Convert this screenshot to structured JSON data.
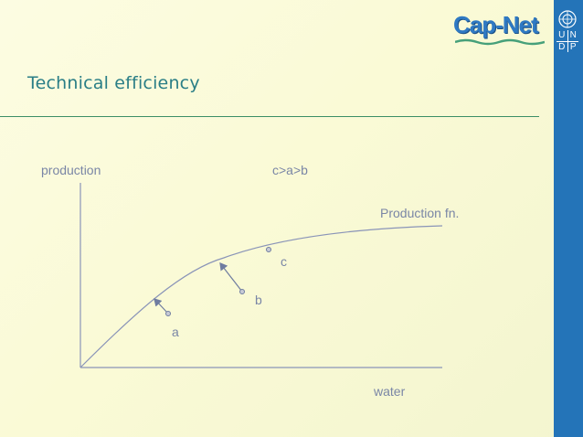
{
  "slide": {
    "title": "Technical efficiency",
    "brand_logo_text": "Cap-Net",
    "undp_letters": [
      "U",
      "N",
      "D",
      "P"
    ],
    "icons": [
      "cap-net-logo",
      "un-emblem-icon",
      "undp-logo"
    ],
    "colors": {
      "side_bar": "#2474b8",
      "title": "#2a7e86",
      "rule": "#3c8e66",
      "diagram_lines": "#8a94b8",
      "labels": "#7a86a6"
    }
  },
  "diagram": {
    "y_axis_label": "production",
    "x_axis_label": "water",
    "ordering_note": "c>a>b",
    "curve_label": "Production fn.",
    "points": [
      {
        "id": "a",
        "label": "a"
      },
      {
        "id": "b",
        "label": "b"
      },
      {
        "id": "c",
        "label": "c"
      }
    ],
    "arrows": [
      {
        "from": "a",
        "to": "curve"
      },
      {
        "from": "b",
        "to": "curve"
      }
    ]
  }
}
